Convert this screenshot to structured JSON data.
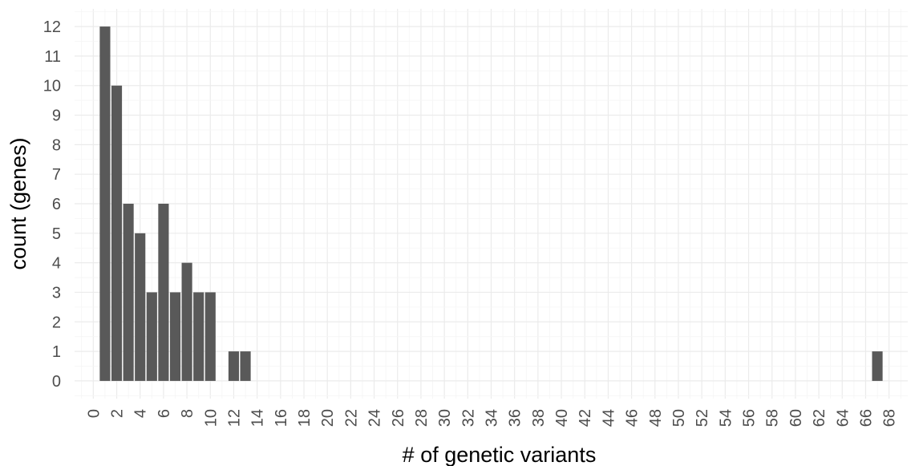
{
  "chart_data": {
    "type": "bar",
    "title": "",
    "xlabel": "# of genetic variants",
    "ylabel": "count (genes)",
    "xlim": [
      -1.6,
      69.6
    ],
    "ylim": [
      -0.6,
      12.6
    ],
    "x_ticks": [
      0,
      2,
      4,
      6,
      8,
      10,
      12,
      14,
      16,
      18,
      20,
      22,
      24,
      26,
      28,
      30,
      32,
      34,
      36,
      38,
      40,
      42,
      44,
      46,
      48,
      50,
      52,
      54,
      56,
      58,
      60,
      62,
      64,
      66,
      68
    ],
    "y_ticks": [
      0,
      1,
      2,
      3,
      4,
      5,
      6,
      7,
      8,
      9,
      10,
      11,
      12
    ],
    "x": [
      1,
      2,
      3,
      4,
      5,
      6,
      7,
      8,
      9,
      10,
      12,
      13,
      67
    ],
    "values": [
      12,
      10,
      6,
      5,
      3,
      6,
      3,
      4,
      3,
      3,
      1,
      1,
      1
    ],
    "bar_color": "#595959",
    "grid": true,
    "grid_major_color": "#ebebeb",
    "grid_minor_color": "#f5f5f5",
    "x_tick_rotation": "vertical"
  }
}
